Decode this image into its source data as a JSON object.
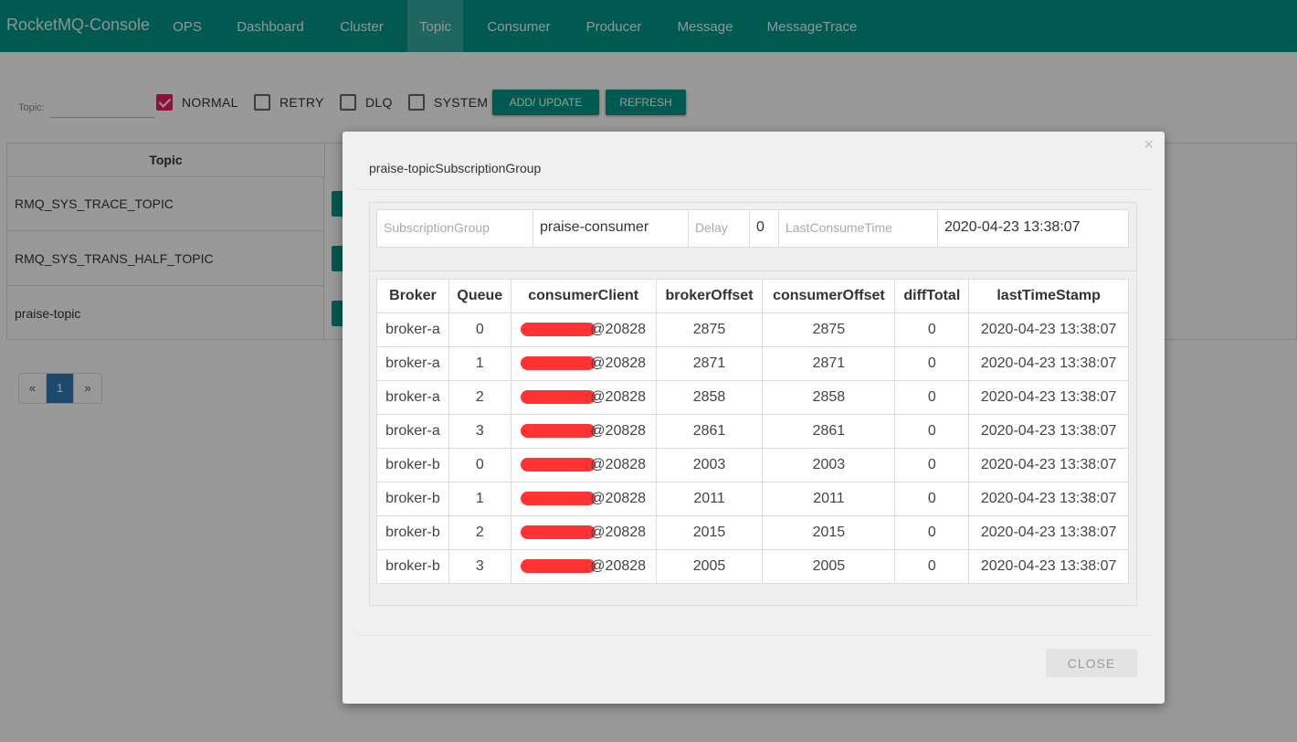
{
  "nav": {
    "brand": "RocketMQ-Console",
    "items": [
      {
        "label": "OPS"
      },
      {
        "label": "Dashboard"
      },
      {
        "label": "Cluster"
      },
      {
        "label": "Topic",
        "active": true
      },
      {
        "label": "Consumer"
      },
      {
        "label": "Producer"
      },
      {
        "label": "Message"
      },
      {
        "label": "MessageTrace"
      }
    ]
  },
  "filter": {
    "topic_label": "Topic:",
    "topic_value": "",
    "checkboxes": [
      {
        "label": "NORMAL",
        "checked": true
      },
      {
        "label": "RETRY",
        "checked": false
      },
      {
        "label": "DLQ",
        "checked": false
      },
      {
        "label": "SYSTEM",
        "checked": false
      }
    ],
    "add_update_label": "ADD/ UPDATE",
    "refresh_label": "REFRESH"
  },
  "topic_table": {
    "header": "Topic",
    "rows": [
      "RMQ_SYS_TRACE_TOPIC",
      "RMQ_SYS_TRANS_HALF_TOPIC",
      "praise-topic"
    ]
  },
  "pagination": {
    "prev": "«",
    "current": "1",
    "next": "»"
  },
  "modal": {
    "title": "praise-topicSubscriptionGroup",
    "close_x": "×",
    "subscription": {
      "group_label": "SubscriptionGroup",
      "group_value": "praise-consumer",
      "delay_label": "Delay",
      "delay_value": "0",
      "last_consume_label": "LastConsumeTime",
      "last_consume_value": "2020-04-23 13:38:07"
    },
    "queue_table": {
      "headers": [
        "Broker",
        "Queue",
        "consumerClient",
        "brokerOffset",
        "consumerOffset",
        "diffTotal",
        "lastTimeStamp"
      ],
      "rows": [
        {
          "broker": "broker-a",
          "queue": "0",
          "client_suffix": "@20828",
          "broker_offset": "2875",
          "consumer_offset": "2875",
          "diff": "0",
          "ts": "2020-04-23 13:38:07"
        },
        {
          "broker": "broker-a",
          "queue": "1",
          "client_suffix": "@20828",
          "broker_offset": "2871",
          "consumer_offset": "2871",
          "diff": "0",
          "ts": "2020-04-23 13:38:07"
        },
        {
          "broker": "broker-a",
          "queue": "2",
          "client_suffix": "@20828",
          "broker_offset": "2858",
          "consumer_offset": "2858",
          "diff": "0",
          "ts": "2020-04-23 13:38:07"
        },
        {
          "broker": "broker-a",
          "queue": "3",
          "client_suffix": "@20828",
          "broker_offset": "2861",
          "consumer_offset": "2861",
          "diff": "0",
          "ts": "2020-04-23 13:38:07"
        },
        {
          "broker": "broker-b",
          "queue": "0",
          "client_suffix": "@20828",
          "broker_offset": "2003",
          "consumer_offset": "2003",
          "diff": "0",
          "ts": "2020-04-23 13:38:07"
        },
        {
          "broker": "broker-b",
          "queue": "1",
          "client_suffix": "@20828",
          "broker_offset": "2011",
          "consumer_offset": "2011",
          "diff": "0",
          "ts": "2020-04-23 13:38:07"
        },
        {
          "broker": "broker-b",
          "queue": "2",
          "client_suffix": "@20828",
          "broker_offset": "2015",
          "consumer_offset": "2015",
          "diff": "0",
          "ts": "2020-04-23 13:38:07"
        },
        {
          "broker": "broker-b",
          "queue": "3",
          "client_suffix": "@20828",
          "broker_offset": "2005",
          "consumer_offset": "2005",
          "diff": "0",
          "ts": "2020-04-23 13:38:07"
        }
      ]
    },
    "close_label": "CLOSE"
  },
  "colors": {
    "accent": "#009688",
    "checked": "#e91e63",
    "redaction": "#ff3333",
    "page_active": "#337ab7"
  }
}
